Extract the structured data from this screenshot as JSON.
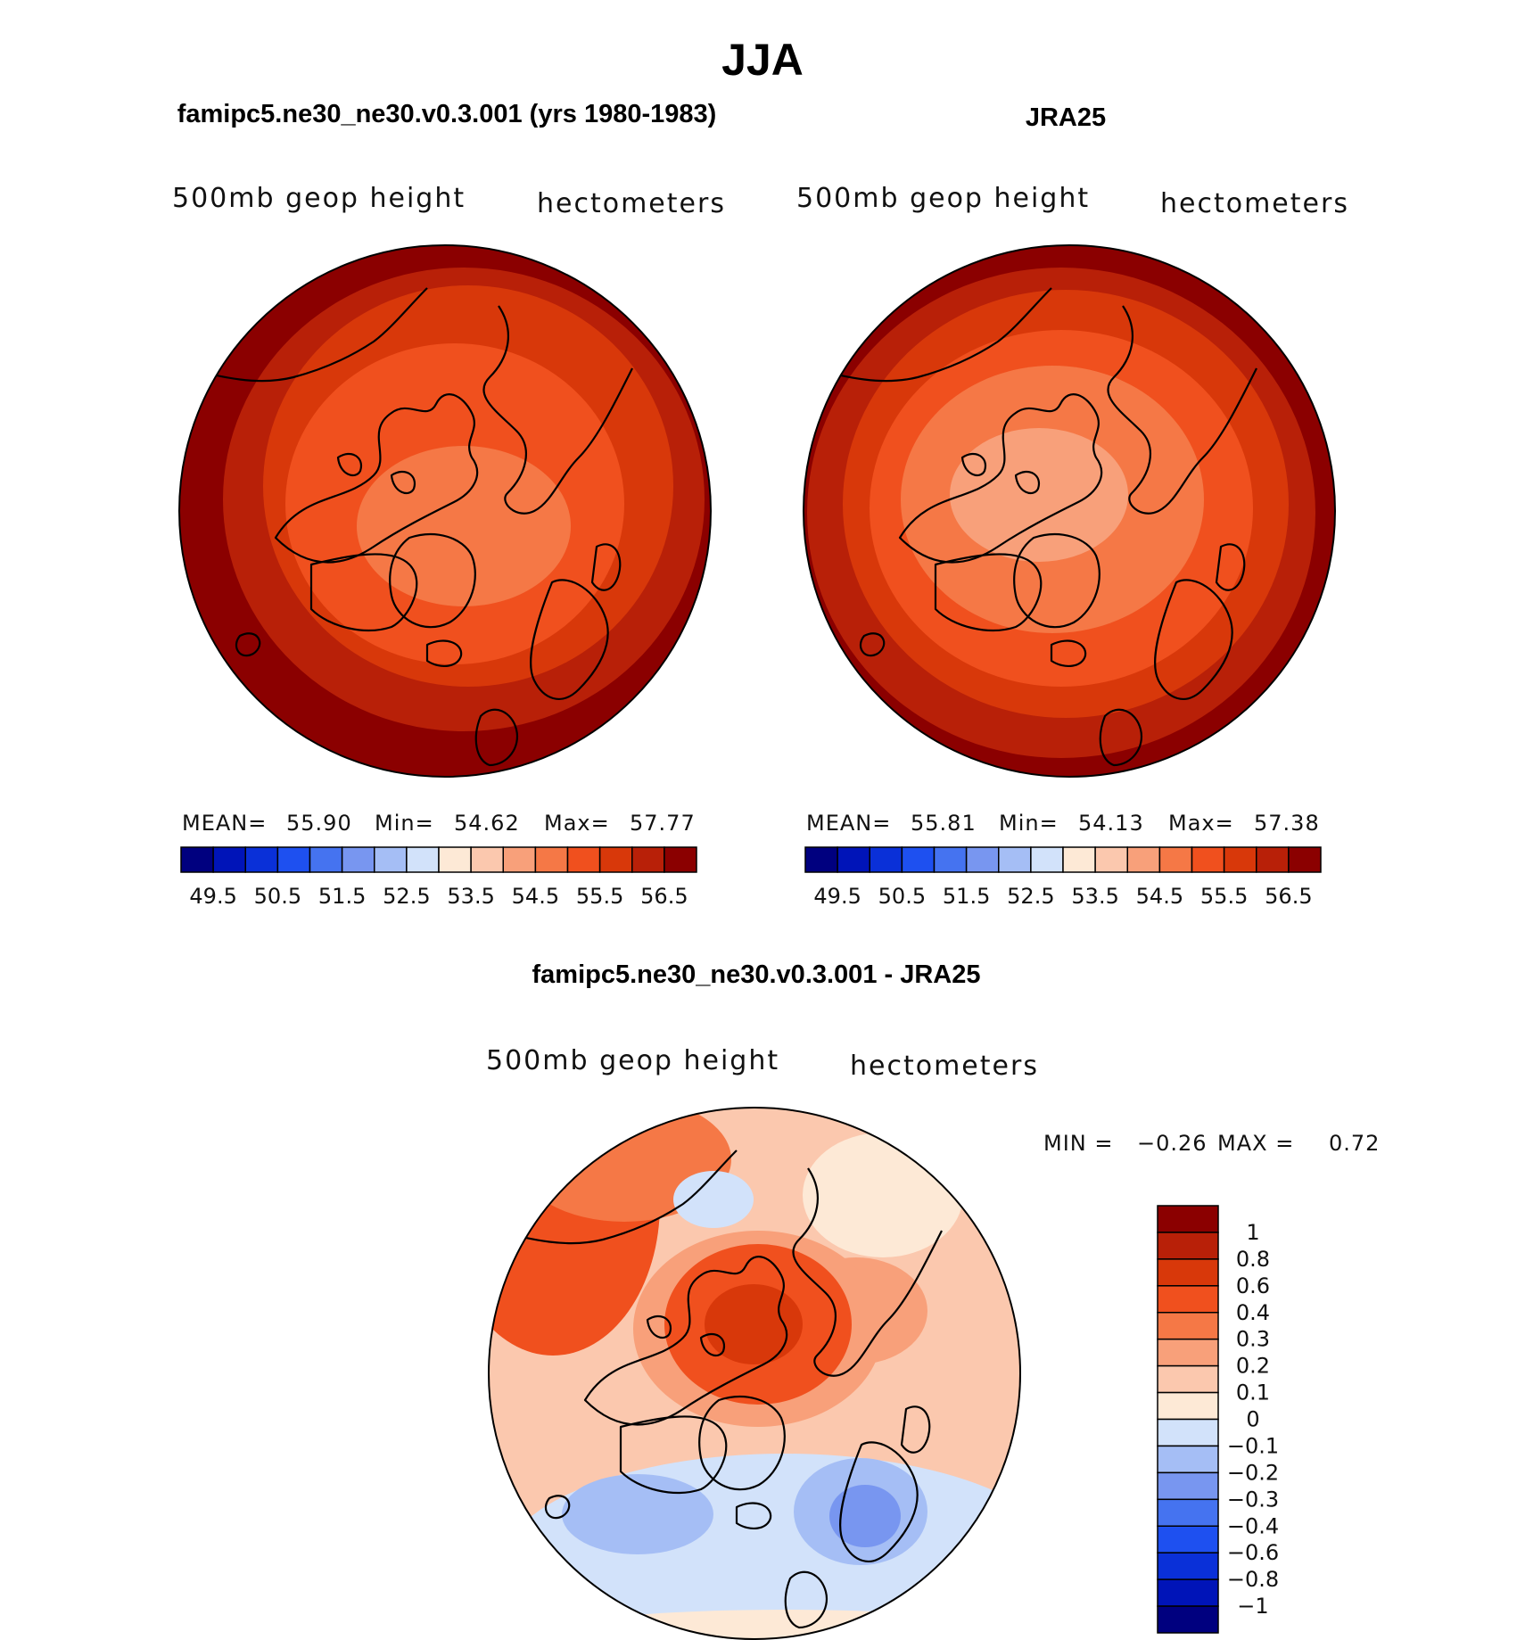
{
  "figure": {
    "title": "JJA"
  },
  "panels": [
    {
      "id": "model",
      "title": "famipc5.ne30_ne30.v0.3.001 (yrs 1980-1983)",
      "left_label": "500mb  geop  height",
      "right_label": "hectometers",
      "stats": {
        "mean_label": "MEAN=",
        "mean": "55.90",
        "min_label": "Min=",
        "min": "54.62",
        "max_label": "Max=",
        "max": "57.77"
      }
    },
    {
      "id": "obs",
      "title": "JRA25",
      "left_label": "500mb  geop  height",
      "right_label": "hectometers",
      "stats": {
        "mean_label": "MEAN=",
        "mean": "55.81",
        "min_label": "Min=",
        "min": "54.13",
        "max_label": "Max=",
        "max": "57.38"
      }
    },
    {
      "id": "diff",
      "title": "famipc5.ne30_ne30.v0.3.001 - JRA25",
      "left_label": "500mb  geop  height",
      "right_label": "hectometers",
      "stats": {
        "min_label": "MIN =",
        "min": "−0.26",
        "max_label": "MAX =",
        "max": "0.72"
      }
    }
  ],
  "colorbars": {
    "mean_field": {
      "colors": [
        "#00007f",
        "#0014b8",
        "#0a30d8",
        "#1e50f0",
        "#4573f0",
        "#7896f0",
        "#a5bef5",
        "#d2e2fa",
        "#fde9d6",
        "#fbc8ae",
        "#f8a07a",
        "#f57846",
        "#f0501e",
        "#d8380a",
        "#b82008",
        "#8b0000"
      ],
      "tick_labels": [
        "49.5",
        "50.5",
        "51.5",
        "52.5",
        "53.5",
        "54.5",
        "55.5",
        "56.5"
      ]
    },
    "difference": {
      "colors": [
        "#8b0000",
        "#b82008",
        "#d8380a",
        "#f0501e",
        "#f57846",
        "#f8a07a",
        "#fbc8ae",
        "#fde9d6",
        "#d2e2fa",
        "#a5bef5",
        "#7896f0",
        "#4573f0",
        "#1e50f0",
        "#0a30d8",
        "#0014b8",
        "#00007f"
      ],
      "tick_labels": [
        "1",
        "0.8",
        "0.6",
        "0.4",
        "0.3",
        "0.2",
        "0.1",
        "0",
        "−0.1",
        "−0.2",
        "−0.3",
        "−0.4",
        "−0.6",
        "−0.8",
        "−1"
      ]
    }
  },
  "chart_data": [
    {
      "type": "heatmap",
      "projection": "north polar stereographic",
      "title": "famipc5.ne30_ne30.v0.3.001 (yrs 1980-1983)",
      "variable": "500mb geop height",
      "units": "hectometers",
      "contour_levels": [
        49.5,
        50,
        50.5,
        51,
        51.5,
        52,
        52.5,
        53,
        53.5,
        54,
        54.5,
        55,
        55.5,
        56,
        56.5
      ],
      "mean": 55.9,
      "min": 54.62,
      "max": 57.77
    },
    {
      "type": "heatmap",
      "projection": "north polar stereographic",
      "title": "JRA25",
      "variable": "500mb geop height",
      "units": "hectometers",
      "contour_levels": [
        49.5,
        50,
        50.5,
        51,
        51.5,
        52,
        52.5,
        53,
        53.5,
        54,
        54.5,
        55,
        55.5,
        56,
        56.5
      ],
      "mean": 55.81,
      "min": 54.13,
      "max": 57.38
    },
    {
      "type": "heatmap",
      "projection": "north polar stereographic",
      "title": "famipc5.ne30_ne30.v0.3.001 - JRA25",
      "variable": "500mb geop height",
      "units": "hectometers",
      "contour_levels": [
        -1,
        -0.8,
        -0.6,
        -0.4,
        -0.3,
        -0.2,
        -0.1,
        0,
        0.1,
        0.2,
        0.3,
        0.4,
        0.6,
        0.8,
        1
      ],
      "min": -0.26,
      "max": 0.72
    }
  ]
}
